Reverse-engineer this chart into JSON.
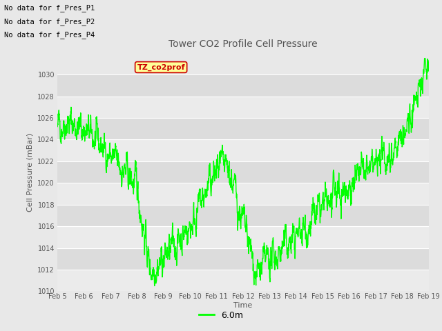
{
  "title": "Tower CO2 Profile Cell Pressure",
  "xlabel": "Time",
  "ylabel": "Cell Pressure (mBar)",
  "ylim": [
    1010,
    1032
  ],
  "xlim": [
    0,
    336
  ],
  "yticks": [
    1010,
    1012,
    1014,
    1016,
    1018,
    1020,
    1022,
    1024,
    1026,
    1028,
    1030
  ],
  "xtick_labels": [
    "Feb 5",
    "Feb 6",
    "Feb 7",
    "Feb 8",
    "Feb 9",
    "Feb 10",
    "Feb 11",
    "Feb 12",
    "Feb 13",
    "Feb 14",
    "Feb 15",
    "Feb 16",
    "Feb 17",
    "Feb 18",
    "Feb 19"
  ],
  "xtick_positions": [
    0,
    24,
    48,
    72,
    96,
    120,
    144,
    168,
    192,
    216,
    240,
    264,
    288,
    312,
    336
  ],
  "line_color": "#00FF00",
  "line_width": 1.0,
  "legend_label": "6.0m",
  "legend_color": "#00FF00",
  "no_data_texts": [
    "No data for f_Pres_P1",
    "No data for f_Pres_P2",
    "No data for f_Pres_P4"
  ],
  "tooltip_text": "TZ_co2prof",
  "tooltip_color": "#FFFF99",
  "tooltip_border": "#CC0000",
  "band_light": "#EBEBEB",
  "band_dark": "#DCDCDC",
  "text_color": "#555555"
}
